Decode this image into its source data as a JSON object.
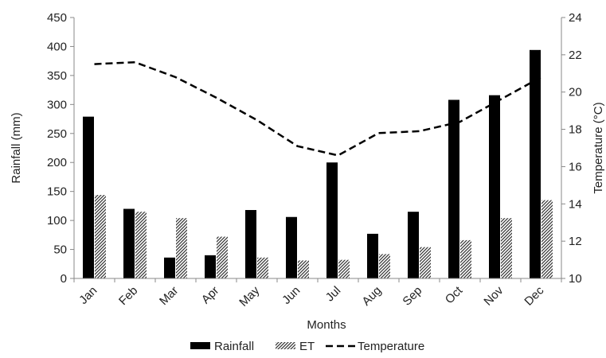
{
  "chart_data": {
    "type": "bar",
    "categories": [
      "Jan",
      "Feb",
      "Mar",
      "Apr",
      "May",
      "Jun",
      "Jul",
      "Aug",
      "Sep",
      "Oct",
      "Nov",
      "Dec"
    ],
    "series": [
      {
        "name": "Rainfall",
        "type": "bar",
        "axis": "left",
        "color": "#000000",
        "pattern": "solid",
        "values": [
          279,
          120,
          36,
          40,
          118,
          106,
          200,
          77,
          115,
          308,
          316,
          394
        ]
      },
      {
        "name": "ET",
        "type": "bar",
        "axis": "left",
        "color": "#555555",
        "pattern": "diagonal-hatch",
        "values": [
          144,
          115,
          104,
          72,
          36,
          31,
          32,
          42,
          54,
          66,
          104,
          135
        ]
      },
      {
        "name": "Temperature",
        "type": "line",
        "axis": "right",
        "color": "#000000",
        "line_style": "dashed",
        "values": [
          21.5,
          21.6,
          20.8,
          19.7,
          18.5,
          17.1,
          16.6,
          17.8,
          17.9,
          18.4,
          19.6,
          20.8
        ]
      }
    ],
    "xlabel": "Months",
    "ylabel": "Rainfall (mm)",
    "y2label": "Temperature (°C)",
    "ylim": [
      0,
      450
    ],
    "y2lim": [
      10,
      24
    ],
    "yticks": [
      "0",
      "50",
      "100",
      "150",
      "200",
      "250",
      "300",
      "350",
      "400",
      "450"
    ],
    "y2ticks": [
      "10",
      "12",
      "14",
      "16",
      "18",
      "20",
      "22",
      "24"
    ],
    "grid": false,
    "legend_position": "bottom"
  }
}
